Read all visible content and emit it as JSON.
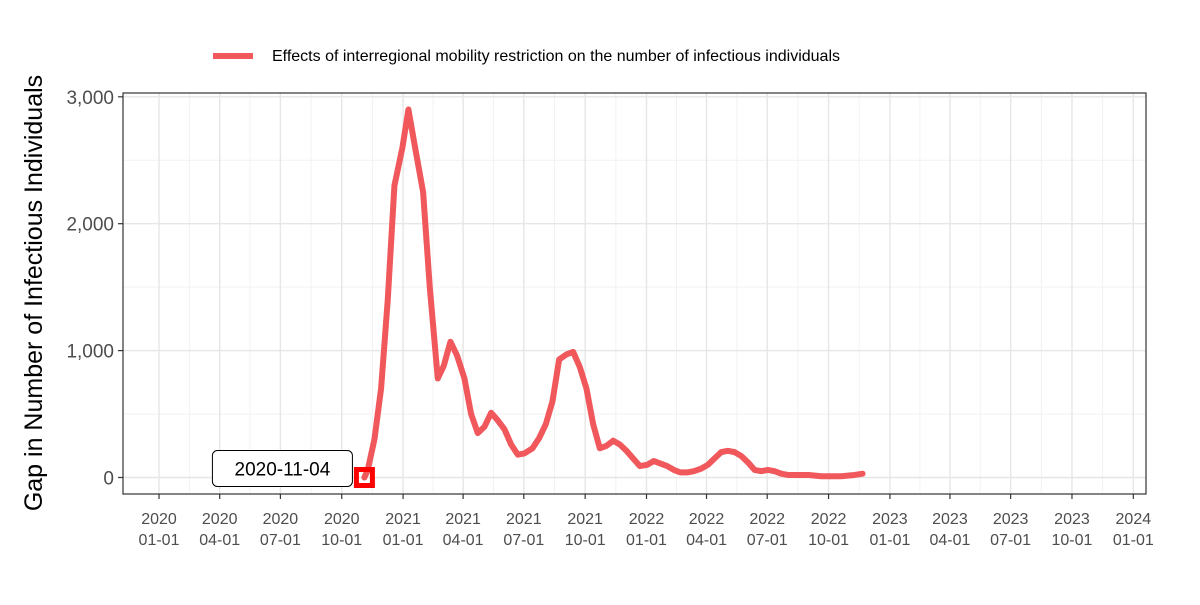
{
  "chart_data": {
    "type": "line",
    "ylabel": "Gap in Number of Infectious Individuals",
    "xlabel": "",
    "legend": {
      "position": "top",
      "entries": [
        "Effects of interregional mobility restriction on the number of infectious individuals"
      ]
    },
    "grid": true,
    "xlim": [
      "2019-11-08",
      "2024-01-20"
    ],
    "ylim": [
      -130,
      3030
    ],
    "x_ticks": [
      {
        "date": "2020-01-01",
        "line1": "2020",
        "line2": "01-01"
      },
      {
        "date": "2020-04-01",
        "line1": "2020",
        "line2": "04-01"
      },
      {
        "date": "2020-07-01",
        "line1": "2020",
        "line2": "07-01"
      },
      {
        "date": "2020-10-01",
        "line1": "2020",
        "line2": "10-01"
      },
      {
        "date": "2021-01-01",
        "line1": "2021",
        "line2": "01-01"
      },
      {
        "date": "2021-04-01",
        "line1": "2021",
        "line2": "04-01"
      },
      {
        "date": "2021-07-01",
        "line1": "2021",
        "line2": "07-01"
      },
      {
        "date": "2021-10-01",
        "line1": "2021",
        "line2": "10-01"
      },
      {
        "date": "2022-01-01",
        "line1": "2022",
        "line2": "01-01"
      },
      {
        "date": "2022-04-01",
        "line1": "2022",
        "line2": "04-01"
      },
      {
        "date": "2022-07-01",
        "line1": "2022",
        "line2": "07-01"
      },
      {
        "date": "2022-10-01",
        "line1": "2022",
        "line2": "10-01"
      },
      {
        "date": "2023-01-01",
        "line1": "2023",
        "line2": "01-01"
      },
      {
        "date": "2023-04-01",
        "line1": "2023",
        "line2": "04-01"
      },
      {
        "date": "2023-07-01",
        "line1": "2023",
        "line2": "07-01"
      },
      {
        "date": "2023-10-01",
        "line1": "2023",
        "line2": "10-01"
      },
      {
        "date": "2024-01-01",
        "line1": "2024",
        "line2": "01-01"
      }
    ],
    "y_ticks": [
      {
        "value": 0,
        "label": "0"
      },
      {
        "value": 1000,
        "label": "1,000"
      },
      {
        "value": 2000,
        "label": "2,000"
      },
      {
        "value": 3000,
        "label": "3,000"
      }
    ],
    "series": [
      {
        "name": "Effects of interregional mobility restriction on the number of infectious individuals",
        "color": "#F0585C",
        "points": [
          [
            "2020-11-04",
            0
          ],
          [
            "2020-11-09",
            60
          ],
          [
            "2020-11-19",
            300
          ],
          [
            "2020-11-29",
            700
          ],
          [
            "2020-12-09",
            1400
          ],
          [
            "2020-12-19",
            2300
          ],
          [
            "2020-12-31",
            2600
          ],
          [
            "2021-01-09",
            2900
          ],
          [
            "2021-01-19",
            2600
          ],
          [
            "2021-01-31",
            2250
          ],
          [
            "2021-02-10",
            1500
          ],
          [
            "2021-02-22",
            780
          ],
          [
            "2021-03-03",
            880
          ],
          [
            "2021-03-13",
            1070
          ],
          [
            "2021-03-23",
            960
          ],
          [
            "2021-04-03",
            780
          ],
          [
            "2021-04-13",
            500
          ],
          [
            "2021-04-23",
            350
          ],
          [
            "2021-05-03",
            400
          ],
          [
            "2021-05-13",
            510
          ],
          [
            "2021-05-23",
            450
          ],
          [
            "2021-06-02",
            380
          ],
          [
            "2021-06-12",
            260
          ],
          [
            "2021-06-22",
            180
          ],
          [
            "2021-07-02",
            190
          ],
          [
            "2021-07-14",
            230
          ],
          [
            "2021-07-24",
            310
          ],
          [
            "2021-08-03",
            420
          ],
          [
            "2021-08-13",
            600
          ],
          [
            "2021-08-23",
            930
          ],
          [
            "2021-09-03",
            970
          ],
          [
            "2021-09-13",
            990
          ],
          [
            "2021-09-23",
            870
          ],
          [
            "2021-10-03",
            700
          ],
          [
            "2021-10-13",
            420
          ],
          [
            "2021-10-23",
            230
          ],
          [
            "2021-11-02",
            250
          ],
          [
            "2021-11-12",
            290
          ],
          [
            "2021-11-22",
            260
          ],
          [
            "2021-12-02",
            210
          ],
          [
            "2021-12-12",
            150
          ],
          [
            "2021-12-22",
            90
          ],
          [
            "2022-01-02",
            100
          ],
          [
            "2022-01-12",
            130
          ],
          [
            "2022-01-22",
            110
          ],
          [
            "2022-02-01",
            90
          ],
          [
            "2022-02-11",
            60
          ],
          [
            "2022-02-21",
            40
          ],
          [
            "2022-03-03",
            40
          ],
          [
            "2022-03-13",
            50
          ],
          [
            "2022-03-24",
            70
          ],
          [
            "2022-04-03",
            100
          ],
          [
            "2022-04-13",
            150
          ],
          [
            "2022-04-23",
            200
          ],
          [
            "2022-05-03",
            210
          ],
          [
            "2022-05-13",
            200
          ],
          [
            "2022-05-23",
            170
          ],
          [
            "2022-06-02",
            120
          ],
          [
            "2022-06-12",
            60
          ],
          [
            "2022-06-22",
            50
          ],
          [
            "2022-07-02",
            60
          ],
          [
            "2022-07-12",
            50
          ],
          [
            "2022-07-22",
            30
          ],
          [
            "2022-08-01",
            20
          ],
          [
            "2022-08-15",
            20
          ],
          [
            "2022-09-01",
            20
          ],
          [
            "2022-09-20",
            10
          ],
          [
            "2022-10-06",
            10
          ],
          [
            "2022-10-20",
            10
          ],
          [
            "2022-11-09",
            20
          ],
          [
            "2022-11-21",
            30
          ]
        ]
      }
    ],
    "annotations": [
      {
        "text": "2020-11-04",
        "x": "2020-11-04",
        "y": 0,
        "marker": "square",
        "marker_color": "#FF0000"
      }
    ]
  }
}
